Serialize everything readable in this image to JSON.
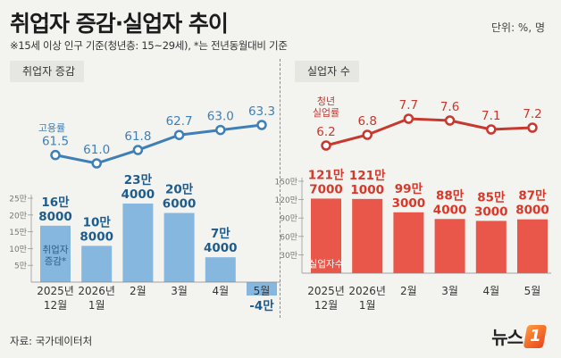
{
  "header": {
    "title": "취업자 증감·실업자 추이",
    "unit": "단위: %, 명",
    "note": "※15세 이상 인구 기준(청년층: 15~29세), *는 전년동월대비 기준"
  },
  "footer": {
    "source": "자료: 국가데이터처",
    "logo_text": "뉴스",
    "logo_badge": "1"
  },
  "colors": {
    "blue_bar": "#86b7df",
    "blue_line": "#3f7fb8",
    "red_bar": "#e8574a",
    "red_line": "#c7382f",
    "navy_label": "#1f5c8c",
    "red_label": "#d8382a"
  },
  "chart_data": [
    {
      "type": "bar+line",
      "panel_label": "취업자 증감",
      "categories": [
        [
          "2025년",
          "12월"
        ],
        [
          "2026년",
          "1월"
        ],
        [
          "2월"
        ],
        [
          "3월"
        ],
        [
          "4월"
        ],
        [
          "5월"
        ]
      ],
      "line": {
        "label": "고용률",
        "values": [
          61.5,
          61.0,
          61.8,
          62.7,
          63.0,
          63.3
        ]
      },
      "bars": {
        "inner_label": [
          "취업자",
          "증감*"
        ],
        "values": [
          168000,
          108000,
          234000,
          206000,
          74000,
          -40000
        ],
        "value_labels": [
          [
            "16만",
            "8000"
          ],
          [
            "10만",
            "8000"
          ],
          [
            "23만",
            "4000"
          ],
          [
            "20만",
            "6000"
          ],
          [
            "7만",
            "4000"
          ],
          [
            "-4만"
          ]
        ],
        "ylim": [
          -40000,
          250000
        ],
        "ticks": [
          {
            "v": 250000,
            "label": "25만"
          },
          {
            "v": 200000,
            "label": "20만"
          },
          {
            "v": 150000,
            "label": "15만"
          },
          {
            "v": 100000,
            "label": "10만"
          },
          {
            "v": 50000,
            "label": "5만"
          }
        ]
      }
    },
    {
      "type": "bar+line",
      "panel_label": "실업자 수",
      "categories": [
        [
          "2025년",
          "12월"
        ],
        [
          "2026년",
          "1월"
        ],
        [
          "2월"
        ],
        [
          "3월"
        ],
        [
          "4월"
        ],
        [
          "5월"
        ]
      ],
      "line": {
        "label": [
          "청년",
          "실업률"
        ],
        "values": [
          6.2,
          6.8,
          7.7,
          7.6,
          7.1,
          7.2
        ]
      },
      "bars": {
        "inner_label": [
          "실업자수"
        ],
        "values": [
          1217000,
          1211000,
          993000,
          884000,
          853000,
          878000
        ],
        "value_labels": [
          [
            "121만",
            "7000"
          ],
          [
            "121만",
            "1000"
          ],
          [
            "99만",
            "3000"
          ],
          [
            "88만",
            "4000"
          ],
          [
            "85만",
            "3000"
          ],
          [
            "87만",
            "8000"
          ]
        ],
        "ylim": [
          0,
          1500000
        ],
        "ticks": [
          {
            "v": 1500000,
            "label": "150만"
          },
          {
            "v": 1200000,
            "label": "120만"
          },
          {
            "v": 900000,
            "label": "90만"
          },
          {
            "v": 600000,
            "label": "60만"
          },
          {
            "v": 300000,
            "label": "30만"
          }
        ]
      }
    }
  ]
}
